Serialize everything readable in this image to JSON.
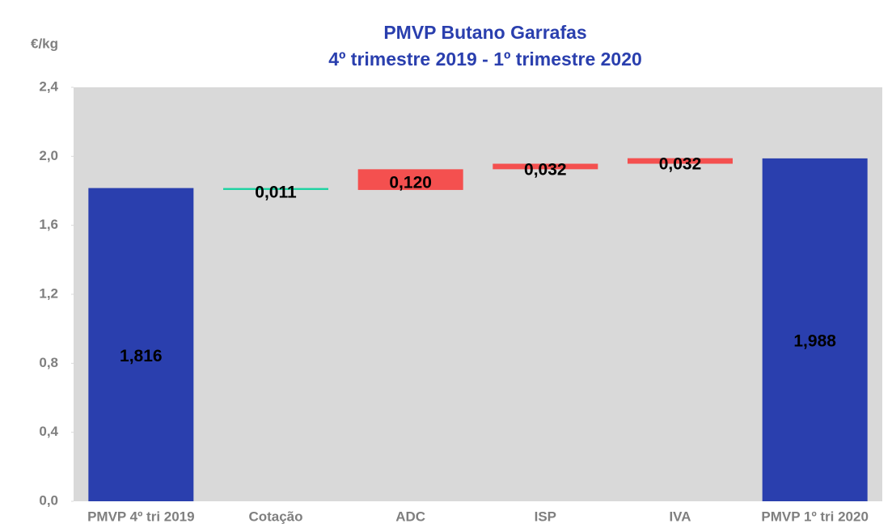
{
  "chart_data": {
    "type": "waterfall",
    "title": "PMVP Butano Garrafas",
    "subtitle": "4º trimestre 2019 - 1º trimestre 2020",
    "y_label": "€/kg",
    "categories": [
      "PMVP 4º tri 2019",
      "Cotação",
      "ADC",
      "ISP",
      "IVA",
      "PMVP 1º tri 2020"
    ],
    "measure": [
      "total",
      "relative",
      "relative",
      "relative",
      "relative",
      "total"
    ],
    "values": [
      1.816,
      -0.011,
      0.12,
      0.032,
      0.032,
      1.988
    ],
    "value_labels": [
      "1,816",
      "0,011",
      "0,120",
      "0,032",
      "0,032",
      "1,988"
    ],
    "total_color": "#2a3fae",
    "increase_color": "#f4504f",
    "decrease_color": "#19d3a0",
    "ylim": [
      0,
      2.4
    ],
    "yticks": [
      {
        "value": 0,
        "label": "0,0"
      },
      {
        "value": 0.4,
        "label": "0,4"
      },
      {
        "value": 0.8,
        "label": "0,8"
      },
      {
        "value": 1.2,
        "label": "1,2"
      },
      {
        "value": 1.6,
        "label": "1,6"
      },
      {
        "value": 2.0,
        "label": "2,0"
      },
      {
        "value": 2.4,
        "label": "2,4"
      }
    ]
  }
}
